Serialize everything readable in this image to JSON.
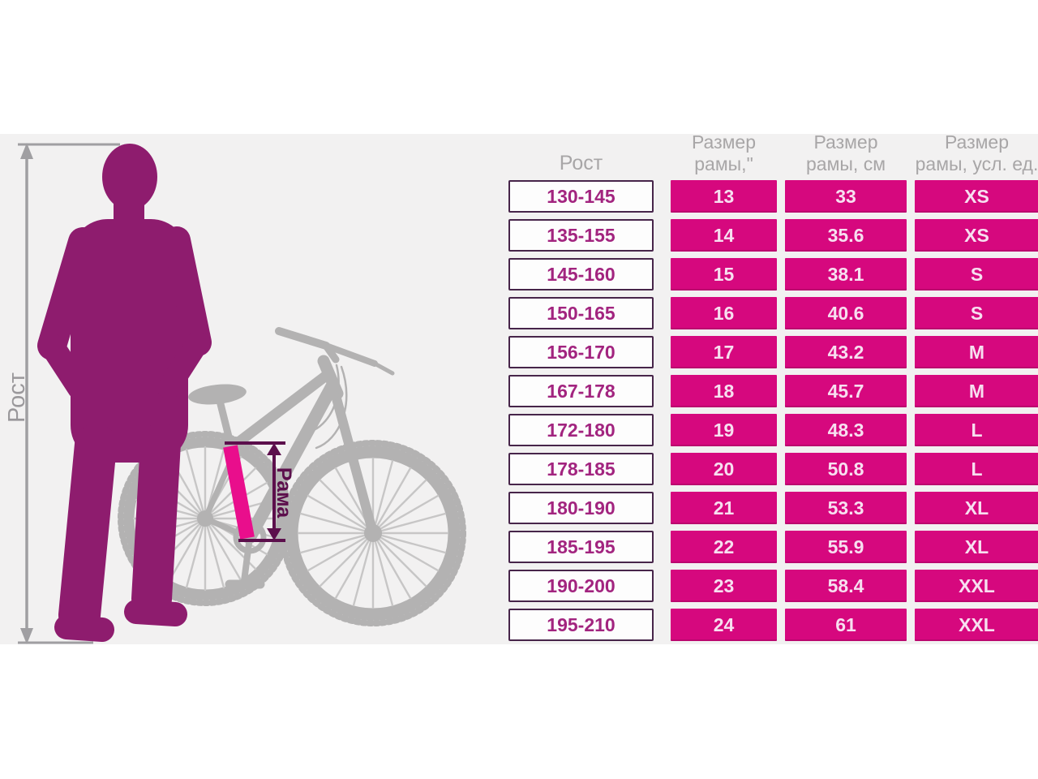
{
  "diagram": {
    "height_label": "Рост",
    "frame_label": "Рама"
  },
  "table": {
    "headers": {
      "height": {
        "label": "Рост"
      },
      "inches": {
        "line1": "Размер",
        "line2": "рамы,\""
      },
      "cm": {
        "line1": "Размер",
        "line2": "рамы, см"
      },
      "units": {
        "line1": "Размер",
        "line2": "рамы, усл. ед."
      }
    },
    "rows": [
      {
        "height": "130-145",
        "inches": "13",
        "cm": "33",
        "size": "XS"
      },
      {
        "height": "135-155",
        "inches": "14",
        "cm": "35.6",
        "size": "XS"
      },
      {
        "height": "145-160",
        "inches": "15",
        "cm": "38.1",
        "size": "S"
      },
      {
        "height": "150-165",
        "inches": "16",
        "cm": "40.6",
        "size": "S"
      },
      {
        "height": "156-170",
        "inches": "17",
        "cm": "43.2",
        "size": "M"
      },
      {
        "height": "167-178",
        "inches": "18",
        "cm": "45.7",
        "size": "M"
      },
      {
        "height": "172-180",
        "inches": "19",
        "cm": "48.3",
        "size": "L"
      },
      {
        "height": "178-185",
        "inches": "20",
        "cm": "50.8",
        "size": "L"
      },
      {
        "height": "180-190",
        "inches": "21",
        "cm": "53.3",
        "size": "XL"
      },
      {
        "height": "185-195",
        "inches": "22",
        "cm": "55.9",
        "size": "XL"
      },
      {
        "height": "190-200",
        "inches": "23",
        "cm": "58.4",
        "size": "XXL"
      },
      {
        "height": "195-210",
        "inches": "24",
        "cm": "61",
        "size": "XXL"
      }
    ]
  },
  "colors": {
    "cell_magenta": "#d6087e",
    "cell_text_light": "#f7dff0",
    "height_cell_border": "#47254a",
    "height_cell_text": "#a2247f",
    "header_gray": "#a8a6a7",
    "silhouette_purple": "#8e1c6e",
    "bike_gray": "#b3b2b2",
    "frame_highlight_pink": "#e90e8c",
    "measure_dark_purple": "#5c0f4c",
    "band_gray": "#f2f1f1"
  }
}
